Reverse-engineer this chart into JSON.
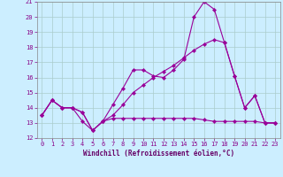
{
  "xlabel": "Windchill (Refroidissement éolien,°C)",
  "xlim": [
    -0.5,
    23.5
  ],
  "ylim": [
    12,
    21
  ],
  "yticks": [
    12,
    13,
    14,
    15,
    16,
    17,
    18,
    19,
    20,
    21
  ],
  "xticks": [
    0,
    1,
    2,
    3,
    4,
    5,
    6,
    7,
    8,
    9,
    10,
    11,
    12,
    13,
    14,
    15,
    16,
    17,
    18,
    19,
    20,
    21,
    22,
    23
  ],
  "bg_color": "#cceeff",
  "line_color": "#990099",
  "line1_x": [
    0,
    1,
    2,
    3,
    4,
    5,
    6,
    7,
    8,
    9,
    10,
    11,
    12,
    13,
    14,
    15,
    16,
    17,
    18,
    19,
    20,
    21,
    22,
    23
  ],
  "line1_y": [
    13.5,
    14.5,
    14.0,
    14.0,
    13.7,
    12.5,
    13.1,
    14.2,
    15.3,
    16.5,
    16.5,
    16.1,
    16.0,
    16.5,
    17.2,
    20.0,
    21.0,
    20.5,
    18.3,
    16.1,
    14.0,
    14.8,
    13.0,
    13.0
  ],
  "line2_x": [
    0,
    1,
    2,
    3,
    4,
    5,
    6,
    7,
    8,
    9,
    10,
    11,
    12,
    13,
    14,
    15,
    16,
    17,
    18,
    19,
    20,
    21,
    22,
    23
  ],
  "line2_y": [
    13.5,
    14.5,
    14.0,
    14.0,
    13.7,
    12.5,
    13.1,
    13.5,
    14.2,
    15.0,
    15.5,
    16.0,
    16.4,
    16.8,
    17.3,
    17.8,
    18.2,
    18.5,
    18.3,
    16.1,
    14.0,
    14.8,
    13.0,
    13.0
  ],
  "line3_x": [
    0,
    1,
    2,
    3,
    4,
    5,
    6,
    7,
    8,
    9,
    10,
    11,
    12,
    13,
    14,
    15,
    16,
    17,
    18,
    19,
    20,
    21,
    22,
    23
  ],
  "line3_y": [
    13.5,
    14.5,
    14.0,
    14.0,
    13.1,
    12.5,
    13.1,
    13.3,
    13.3,
    13.3,
    13.3,
    13.3,
    13.3,
    13.3,
    13.3,
    13.3,
    13.2,
    13.1,
    13.1,
    13.1,
    13.1,
    13.1,
    13.0,
    13.0
  ]
}
